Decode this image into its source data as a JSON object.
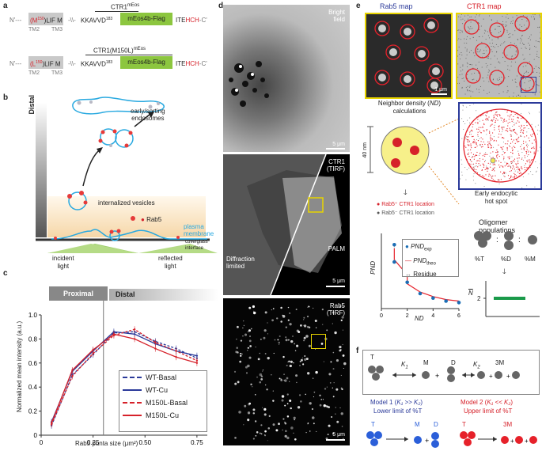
{
  "panels": {
    "a": "a",
    "b": "b",
    "c": "c",
    "d": "d",
    "e": "e",
    "f": "f"
  },
  "a": {
    "row1": {
      "n": "N'---",
      "mutation": "(M",
      "mut_sup": "150",
      "mut_rest": ")LIF M",
      "kkav": "KKAVVD",
      "sup183": "183",
      "protein": "mEos4b-Flag",
      "ite": "ITE",
      "hch": "HCH",
      "c": "-C'",
      "title": "CTR1",
      "title_sup": "mEos",
      "tm2": "TM2",
      "tm3": "TM3"
    },
    "row2": {
      "n": "N'---",
      "mutation": "(L",
      "mut_sup": "150",
      "mut_rest": ")LIF M",
      "kkav": "KKAVVD",
      "sup183": "183",
      "protein": "mEos4b-Flag",
      "ite": "ITE",
      "hch": "HCH",
      "c": "-C'",
      "title": "CTR1(M150L)",
      "title_sup": "mEos",
      "tm2": "TM2",
      "tm3": "TM3"
    }
  },
  "b": {
    "distal": "Distal",
    "proximal": "Proximal",
    "early": "early/sorting",
    "endosomes": "endosomes",
    "internalized": "internalized vesicles",
    "rab5": "Rab5",
    "plasma": "plasma",
    "membrane": "membrane",
    "coverglass": "coverglass",
    "interface": "interface",
    "incident": "incident",
    "reflected": "reflected",
    "light": "light"
  },
  "c": {
    "proximal": "Proximal",
    "distal": "Distal",
    "legend": [
      "WT-Basal",
      "WT-Cu",
      "M150L-Basal",
      "M150L-Cu"
    ],
    "colors": [
      "#2b3a9a",
      "#2b3a9a",
      "#d6212a",
      "#d6212a"
    ],
    "dashed": [
      true,
      false,
      true,
      false
    ]
  },
  "chart_data": {
    "type": "line",
    "xlabel": "Rab5 punta size (μm²)",
    "ylabel": "Normalized mean intensity (a.u.)",
    "xlim": [
      0,
      0.8
    ],
    "ylim": [
      0,
      1.0
    ],
    "xticks": [
      "0",
      "0.25",
      "0.50",
      "0.75"
    ],
    "xtick_values": [
      0,
      0.25,
      0.5,
      0.75
    ],
    "yticks": [
      "0",
      "0.2",
      "0.4",
      "0.6",
      "0.8",
      "1.0"
    ],
    "ytick_values": [
      0,
      0.2,
      0.4,
      0.6,
      0.8,
      1.0
    ],
    "x": [
      0.05,
      0.15,
      0.25,
      0.35,
      0.45,
      0.55,
      0.65,
      0.75
    ],
    "series": [
      {
        "name": "WT-Basal",
        "values": [
          0.08,
          0.5,
          0.67,
          0.85,
          0.86,
          0.78,
          0.72,
          0.64
        ]
      },
      {
        "name": "WT-Cu",
        "values": [
          0.11,
          0.53,
          0.7,
          0.86,
          0.84,
          0.76,
          0.7,
          0.66
        ]
      },
      {
        "name": "M150L-Basal",
        "values": [
          0.09,
          0.49,
          0.68,
          0.83,
          0.88,
          0.77,
          0.7,
          0.62
        ]
      },
      {
        "name": "M150L-Cu",
        "values": [
          0.1,
          0.54,
          0.71,
          0.84,
          0.8,
          0.72,
          0.65,
          0.6
        ]
      }
    ]
  },
  "d": {
    "bright": "Bright",
    "field": "field",
    "scale1": "5 μm",
    "ctr1": "CTR1",
    "tirf": "(TIRF)",
    "diff1": "Diffraction",
    "diff2": "limited",
    "palm": "PALM",
    "scale2": "5 μm",
    "rab5": "Rab5",
    "tirf2": "(TIRF)",
    "scale3": "5 μm"
  },
  "e": {
    "rab5map": "Rab5 map",
    "ctr1map": "CTR1 map",
    "scale": "1 μm",
    "nd1": "Neighbor density (",
    "nd_it": "ND",
    ")": ")",
    "nd2": "calculations",
    "nm": "40 nm",
    "early1": "Early endocytic",
    "early2": "hot spot",
    "rab5pos": "Rab5⁺ CTR1 location",
    "rab5neg": "Rab5⁻ CTR1 location",
    "oligomer": "Oligomer populations",
    "pct_t": "%T",
    "pct_d": "%D",
    "pct_m": "%M",
    "nbar": "N",
    "pnd": "PND",
    "nd": "ND",
    "leg_exp": "PND",
    "leg_exp_sub": "exp",
    "leg_theo": "PND",
    "leg_theo_sub": "theo",
    "leg_res": "Residue",
    "xt": [
      "0",
      "2",
      "4",
      "6"
    ],
    "nt": "2",
    "nd_x": [
      1,
      1,
      2,
      2,
      3,
      4,
      5,
      6
    ],
    "pnd_exp": [
      0.85,
      0.62,
      0.5,
      0.35,
      0.2,
      0.14,
      0.1,
      0.08
    ],
    "pnd_theo": [
      0.8,
      0.65,
      0.45,
      0.33,
      0.22,
      0.16,
      0.12,
      0.1
    ]
  },
  "f": {
    "t": "T",
    "m": "M",
    "d": "D",
    "k1": "K",
    "k1sub": "1",
    "k2": "K",
    "k2sub": "2",
    "threeM": "3M",
    "model1": "Model 1 (",
    "model1k": "K₁ >> K₂",
    "model1close": ")",
    "lower": "Lower limit of %T",
    "model2": "Model 2 (",
    "model2k": "K₁ << K₂",
    "upper": "Upper limit of %T",
    "t2": "T",
    "m2": "M",
    "d2": "D",
    "t3": "T",
    "threeM2": "3M"
  }
}
